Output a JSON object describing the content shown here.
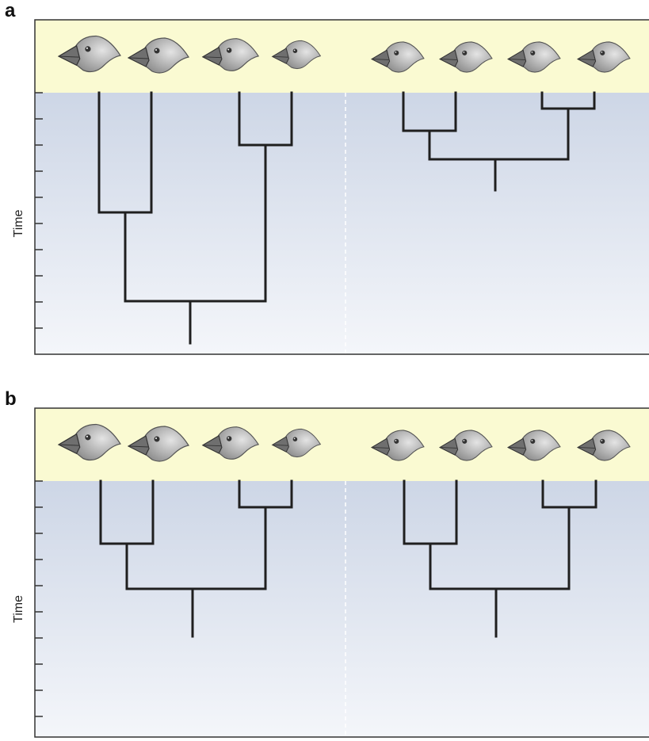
{
  "panels": [
    {
      "label": "a",
      "axis_label": "Time"
    },
    {
      "label": "b",
      "axis_label": "Time"
    }
  ]
}
